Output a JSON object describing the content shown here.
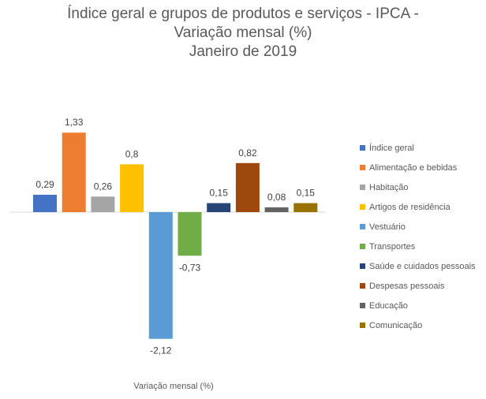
{
  "chart_data": {
    "type": "bar",
    "title": [
      "Índice geral e grupos de produtos e serviços - IPCA -",
      "Variação mensal (%)",
      "Janeiro de 2019"
    ],
    "xlabel": "Variação mensal (%)",
    "ylabel": "",
    "ylim": [
      -2.25,
      1.5
    ],
    "grid": false,
    "legend_position": "right",
    "categories": [
      "Variação mensal (%)"
    ],
    "series": [
      {
        "name": "Índice geral",
        "value": 0.29,
        "label": "0,29",
        "color": "#4472C4"
      },
      {
        "name": "Alimentação e bebidas",
        "value": 1.33,
        "label": "1,33",
        "color": "#ED7D31"
      },
      {
        "name": "Habitação",
        "value": 0.26,
        "label": "0,26",
        "color": "#A5A5A5"
      },
      {
        "name": "Artigos de residência",
        "value": 0.8,
        "label": "0,8",
        "color": "#FFC000"
      },
      {
        "name": "Vestuário",
        "value": -2.12,
        "label": "-2,12",
        "color": "#5B9BD5"
      },
      {
        "name": "Transportes",
        "value": -0.73,
        "label": "-0,73",
        "color": "#70AD47"
      },
      {
        "name": "Saúde e cuidados pessoais",
        "value": 0.15,
        "label": "0,15",
        "color": "#264478"
      },
      {
        "name": "Despesas pessoais",
        "value": 0.82,
        "label": "0,82",
        "color": "#9E480E"
      },
      {
        "name": "Educação",
        "value": 0.08,
        "label": "0,08",
        "color": "#636363"
      },
      {
        "name": "Comunicação",
        "value": 0.15,
        "label": "0,15",
        "color": "#997300"
      }
    ]
  }
}
